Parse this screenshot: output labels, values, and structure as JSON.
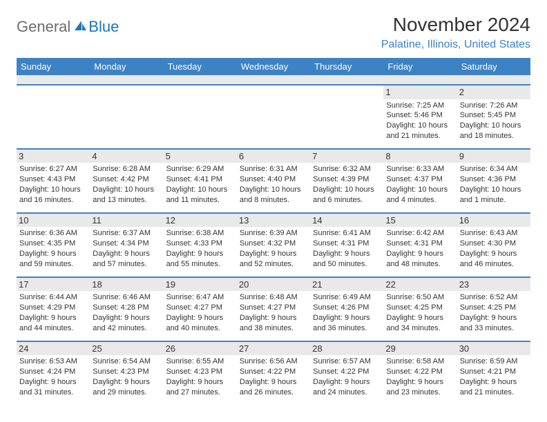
{
  "logo": {
    "general": "General",
    "blue": "Blue"
  },
  "title": "November 2024",
  "location": "Palatine, Illinois, United States",
  "colors": {
    "header_bg": "#3d82c4",
    "header_text": "#ffffff",
    "border": "#3d82c4",
    "daynum_bg": "#e9e9e9",
    "text": "#333333",
    "logo_gray": "#6c6c6c",
    "logo_blue": "#1a75bc",
    "location_color": "#3d82c4"
  },
  "weekdays": [
    "Sunday",
    "Monday",
    "Tuesday",
    "Wednesday",
    "Thursday",
    "Friday",
    "Saturday"
  ],
  "weeks": [
    [
      null,
      null,
      null,
      null,
      null,
      {
        "n": "1",
        "sr": "Sunrise: 7:25 AM",
        "ss": "Sunset: 5:46 PM",
        "d1": "Daylight: 10 hours",
        "d2": "and 21 minutes."
      },
      {
        "n": "2",
        "sr": "Sunrise: 7:26 AM",
        "ss": "Sunset: 5:45 PM",
        "d1": "Daylight: 10 hours",
        "d2": "and 18 minutes."
      }
    ],
    [
      {
        "n": "3",
        "sr": "Sunrise: 6:27 AM",
        "ss": "Sunset: 4:43 PM",
        "d1": "Daylight: 10 hours",
        "d2": "and 16 minutes."
      },
      {
        "n": "4",
        "sr": "Sunrise: 6:28 AM",
        "ss": "Sunset: 4:42 PM",
        "d1": "Daylight: 10 hours",
        "d2": "and 13 minutes."
      },
      {
        "n": "5",
        "sr": "Sunrise: 6:29 AM",
        "ss": "Sunset: 4:41 PM",
        "d1": "Daylight: 10 hours",
        "d2": "and 11 minutes."
      },
      {
        "n": "6",
        "sr": "Sunrise: 6:31 AM",
        "ss": "Sunset: 4:40 PM",
        "d1": "Daylight: 10 hours",
        "d2": "and 8 minutes."
      },
      {
        "n": "7",
        "sr": "Sunrise: 6:32 AM",
        "ss": "Sunset: 4:39 PM",
        "d1": "Daylight: 10 hours",
        "d2": "and 6 minutes."
      },
      {
        "n": "8",
        "sr": "Sunrise: 6:33 AM",
        "ss": "Sunset: 4:37 PM",
        "d1": "Daylight: 10 hours",
        "d2": "and 4 minutes."
      },
      {
        "n": "9",
        "sr": "Sunrise: 6:34 AM",
        "ss": "Sunset: 4:36 PM",
        "d1": "Daylight: 10 hours",
        "d2": "and 1 minute."
      }
    ],
    [
      {
        "n": "10",
        "sr": "Sunrise: 6:36 AM",
        "ss": "Sunset: 4:35 PM",
        "d1": "Daylight: 9 hours",
        "d2": "and 59 minutes."
      },
      {
        "n": "11",
        "sr": "Sunrise: 6:37 AM",
        "ss": "Sunset: 4:34 PM",
        "d1": "Daylight: 9 hours",
        "d2": "and 57 minutes."
      },
      {
        "n": "12",
        "sr": "Sunrise: 6:38 AM",
        "ss": "Sunset: 4:33 PM",
        "d1": "Daylight: 9 hours",
        "d2": "and 55 minutes."
      },
      {
        "n": "13",
        "sr": "Sunrise: 6:39 AM",
        "ss": "Sunset: 4:32 PM",
        "d1": "Daylight: 9 hours",
        "d2": "and 52 minutes."
      },
      {
        "n": "14",
        "sr": "Sunrise: 6:41 AM",
        "ss": "Sunset: 4:31 PM",
        "d1": "Daylight: 9 hours",
        "d2": "and 50 minutes."
      },
      {
        "n": "15",
        "sr": "Sunrise: 6:42 AM",
        "ss": "Sunset: 4:31 PM",
        "d1": "Daylight: 9 hours",
        "d2": "and 48 minutes."
      },
      {
        "n": "16",
        "sr": "Sunrise: 6:43 AM",
        "ss": "Sunset: 4:30 PM",
        "d1": "Daylight: 9 hours",
        "d2": "and 46 minutes."
      }
    ],
    [
      {
        "n": "17",
        "sr": "Sunrise: 6:44 AM",
        "ss": "Sunset: 4:29 PM",
        "d1": "Daylight: 9 hours",
        "d2": "and 44 minutes."
      },
      {
        "n": "18",
        "sr": "Sunrise: 6:46 AM",
        "ss": "Sunset: 4:28 PM",
        "d1": "Daylight: 9 hours",
        "d2": "and 42 minutes."
      },
      {
        "n": "19",
        "sr": "Sunrise: 6:47 AM",
        "ss": "Sunset: 4:27 PM",
        "d1": "Daylight: 9 hours",
        "d2": "and 40 minutes."
      },
      {
        "n": "20",
        "sr": "Sunrise: 6:48 AM",
        "ss": "Sunset: 4:27 PM",
        "d1": "Daylight: 9 hours",
        "d2": "and 38 minutes."
      },
      {
        "n": "21",
        "sr": "Sunrise: 6:49 AM",
        "ss": "Sunset: 4:26 PM",
        "d1": "Daylight: 9 hours",
        "d2": "and 36 minutes."
      },
      {
        "n": "22",
        "sr": "Sunrise: 6:50 AM",
        "ss": "Sunset: 4:25 PM",
        "d1": "Daylight: 9 hours",
        "d2": "and 34 minutes."
      },
      {
        "n": "23",
        "sr": "Sunrise: 6:52 AM",
        "ss": "Sunset: 4:25 PM",
        "d1": "Daylight: 9 hours",
        "d2": "and 33 minutes."
      }
    ],
    [
      {
        "n": "24",
        "sr": "Sunrise: 6:53 AM",
        "ss": "Sunset: 4:24 PM",
        "d1": "Daylight: 9 hours",
        "d2": "and 31 minutes."
      },
      {
        "n": "25",
        "sr": "Sunrise: 6:54 AM",
        "ss": "Sunset: 4:23 PM",
        "d1": "Daylight: 9 hours",
        "d2": "and 29 minutes."
      },
      {
        "n": "26",
        "sr": "Sunrise: 6:55 AM",
        "ss": "Sunset: 4:23 PM",
        "d1": "Daylight: 9 hours",
        "d2": "and 27 minutes."
      },
      {
        "n": "27",
        "sr": "Sunrise: 6:56 AM",
        "ss": "Sunset: 4:22 PM",
        "d1": "Daylight: 9 hours",
        "d2": "and 26 minutes."
      },
      {
        "n": "28",
        "sr": "Sunrise: 6:57 AM",
        "ss": "Sunset: 4:22 PM",
        "d1": "Daylight: 9 hours",
        "d2": "and 24 minutes."
      },
      {
        "n": "29",
        "sr": "Sunrise: 6:58 AM",
        "ss": "Sunset: 4:22 PM",
        "d1": "Daylight: 9 hours",
        "d2": "and 23 minutes."
      },
      {
        "n": "30",
        "sr": "Sunrise: 6:59 AM",
        "ss": "Sunset: 4:21 PM",
        "d1": "Daylight: 9 hours",
        "d2": "and 21 minutes."
      }
    ]
  ]
}
